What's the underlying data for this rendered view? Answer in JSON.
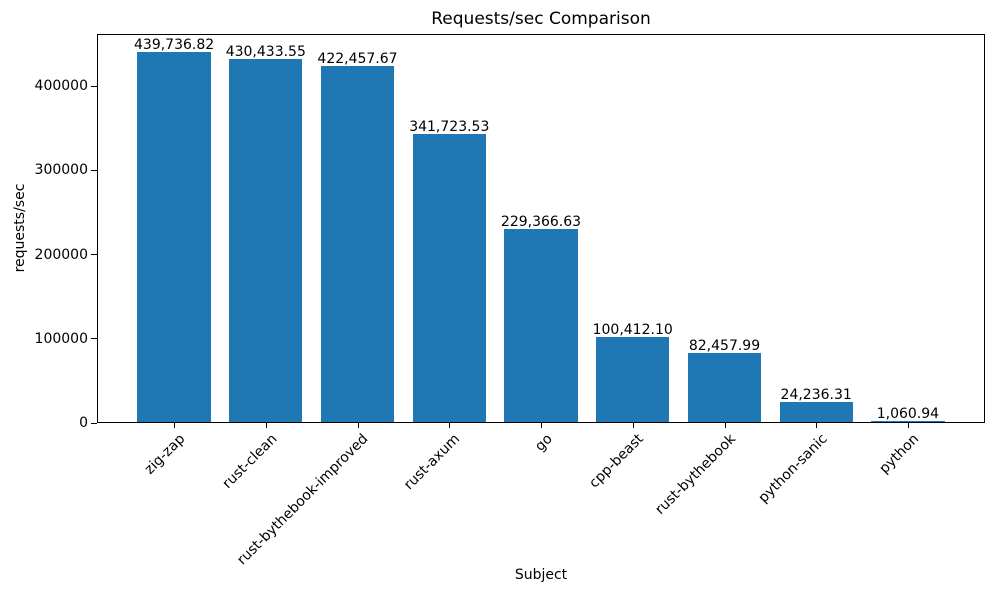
{
  "chart_data": {
    "type": "bar",
    "title": "Requests/sec Comparison",
    "xlabel": "Subject",
    "ylabel": "requests/sec",
    "categories": [
      "zig-zap",
      "rust-clean",
      "rust-bythebook-improved",
      "rust-axum",
      "go",
      "cpp-beast",
      "rust-bythebook",
      "python-sanic",
      "python"
    ],
    "values": [
      439736.82,
      430433.55,
      422457.67,
      341723.53,
      229366.63,
      100412.1,
      82457.99,
      24236.31,
      1060.94
    ],
    "value_labels": [
      "439,736.82",
      "430,433.55",
      "422,457.67",
      "341,723.53",
      "229,366.63",
      "100,412.10",
      "82,457.99",
      "24,236.31",
      "1,060.94"
    ],
    "bar_color": "#1f77b4",
    "text_color": "#000000",
    "ylim": [
      0,
      461724
    ],
    "yticks": [
      0,
      100000,
      200000,
      300000,
      400000
    ],
    "ytick_labels": [
      "0",
      "100000",
      "200000",
      "300000",
      "400000"
    ],
    "bar_width_fraction": 0.8,
    "x_tick_rotation": 45,
    "grid": false,
    "legend": null
  }
}
